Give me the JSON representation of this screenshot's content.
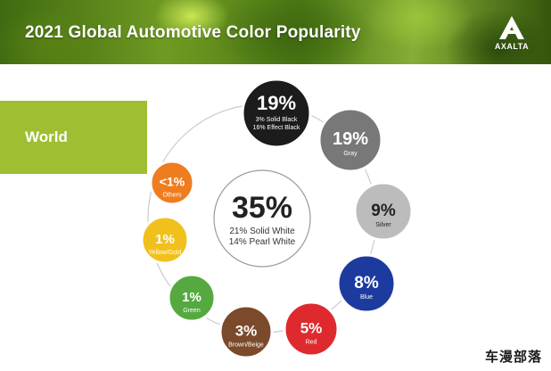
{
  "header": {
    "title": "2021 Global Automotive Color Popularity"
  },
  "brand": {
    "name": "AXALTA"
  },
  "region": {
    "label": "World"
  },
  "colors": {
    "region_bg": "#9fbe32",
    "ring": "#cccccc"
  },
  "chart_data": {
    "type": "bubble-ring",
    "title": "2021 Global Automotive Color Popularity",
    "region": "World",
    "center": {
      "category": "White",
      "value_label": "35%",
      "value": 35,
      "breakdown": [
        "21% Solid White",
        "14% Pearl White"
      ]
    },
    "segments": [
      {
        "category": "Black",
        "value_label": "19%",
        "value": 19,
        "breakdown": [
          "3% Solid Black",
          "16% Effect Black"
        ],
        "color": "#1c1c1c"
      },
      {
        "category": "Gray",
        "value_label": "19%",
        "value": 19,
        "label": "Gray",
        "color": "#787878"
      },
      {
        "category": "Silver",
        "value_label": "9%",
        "value": 9,
        "label": "Silver",
        "color": "#bcbcbc"
      },
      {
        "category": "Blue",
        "value_label": "8%",
        "value": 8,
        "label": "Blue",
        "color": "#1d3b9e"
      },
      {
        "category": "Red",
        "value_label": "5%",
        "value": 5,
        "label": "Red",
        "color": "#de2a2e"
      },
      {
        "category": "Brown/Beige",
        "value_label": "3%",
        "value": 3,
        "label": "Brown/Beige",
        "color": "#7b4a2a"
      },
      {
        "category": "Green",
        "value_label": "1%",
        "value": 1,
        "label": "Green",
        "color": "#56a93f"
      },
      {
        "category": "Yellow/Gold",
        "value_label": "1%",
        "value": 1,
        "label": "Yellow/Gold",
        "color": "#f2c01d"
      },
      {
        "category": "Others",
        "value_label": "<1%",
        "value": 1,
        "label": "Others",
        "color": "#ee7d1f"
      }
    ]
  },
  "watermark": {
    "text": "车漫部落"
  }
}
